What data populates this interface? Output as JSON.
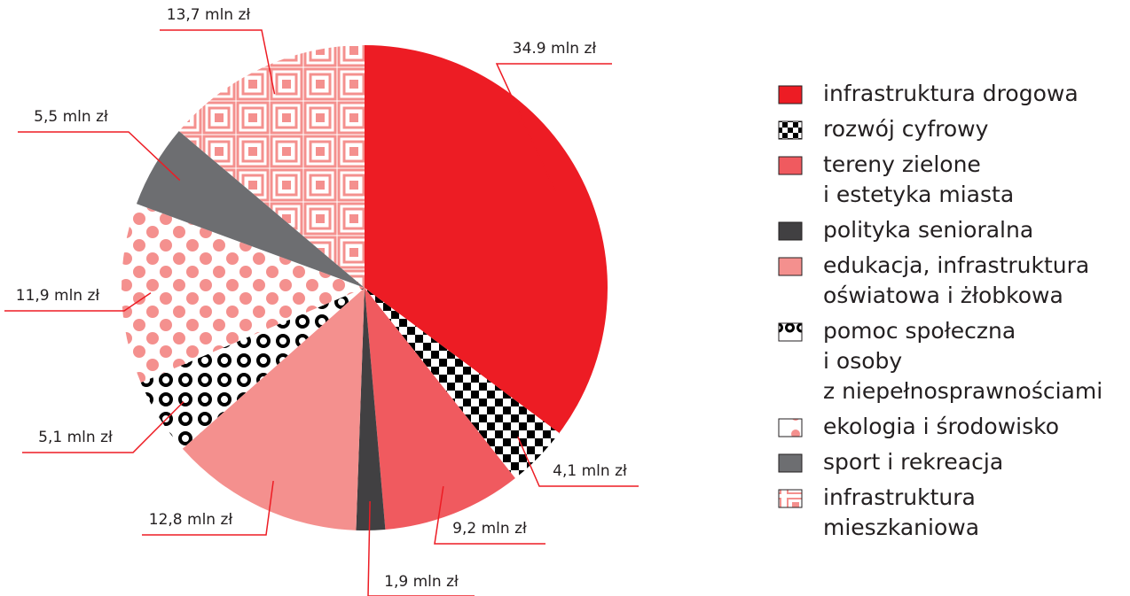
{
  "chart_data": {
    "type": "pie",
    "categories": [
      "infrastruktura drogowa",
      "rozwój cyfrowy",
      "tereny zielone\ni estetyka miasta",
      "polityka senioralna",
      "edukacja, infrastruktura\noświatowa i żłobkowa",
      "pomoc społeczna\ni osoby\nz niepełnosprawnościami",
      "ekologia i środowisko",
      "sport i rekreacja",
      "infrastruktura\nmieszkaniowa"
    ],
    "values": [
      34.9,
      4.1,
      9.2,
      1.9,
      12.8,
      5.1,
      11.9,
      5.5,
      13.7
    ],
    "value_labels": [
      "34.9 mln zł",
      "4,1 mln zł",
      "9,2 mln zł",
      "1,9 mln zł",
      "12,8 mln zł",
      "5,1 mln zł",
      "11,9 mln zł",
      "5,5 mln zł",
      "13,7 mln zł"
    ],
    "colors": [
      "#ed1c24",
      "#000000",
      "#f05a5f",
      "#414042",
      "#f4908e",
      "#000000",
      "#f4908e",
      "#6d6e71",
      "#f4908e"
    ],
    "legend": "right"
  }
}
